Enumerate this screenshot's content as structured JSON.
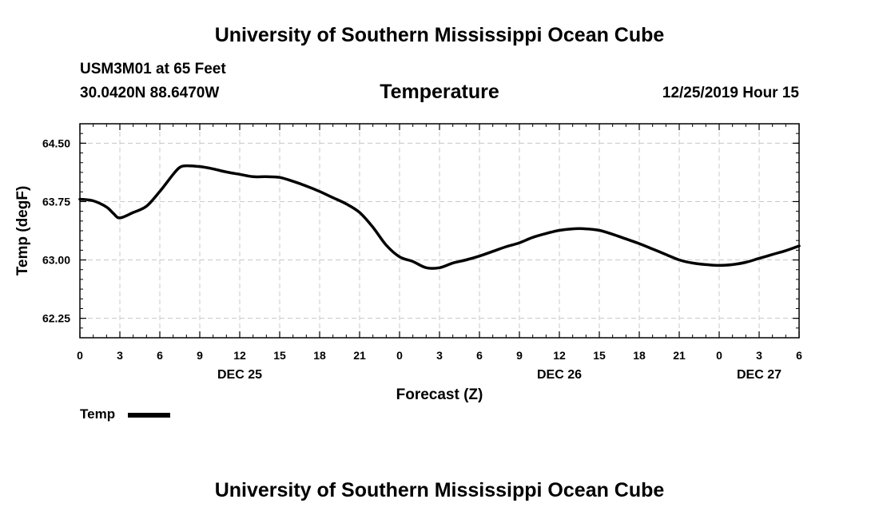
{
  "header": {
    "title": "University of Southern Mississippi Ocean Cube",
    "station": "USM3M01 at 65 Feet",
    "coords": "30.0420N 88.6470W",
    "variable": "Temperature",
    "timestamp": "12/25/2019 Hour 15"
  },
  "footer": {
    "title": "University of Southern Mississippi Ocean Cube"
  },
  "legend": {
    "label": "Temp",
    "color": "#000000"
  },
  "chart_data": {
    "type": "line",
    "title": "Temperature",
    "xlabel": "Forecast (Z)",
    "ylabel": "Temp (degF)",
    "xlim": [
      0,
      54
    ],
    "ylim": [
      62.0,
      64.75
    ],
    "grid": true,
    "x_ticks": [
      {
        "x": 0,
        "label": "0"
      },
      {
        "x": 3,
        "label": "3"
      },
      {
        "x": 6,
        "label": "6"
      },
      {
        "x": 9,
        "label": "9"
      },
      {
        "x": 12,
        "label": "12"
      },
      {
        "x": 15,
        "label": "15"
      },
      {
        "x": 18,
        "label": "18"
      },
      {
        "x": 21,
        "label": "21"
      },
      {
        "x": 24,
        "label": "0"
      },
      {
        "x": 27,
        "label": "3"
      },
      {
        "x": 30,
        "label": "6"
      },
      {
        "x": 33,
        "label": "9"
      },
      {
        "x": 36,
        "label": "12"
      },
      {
        "x": 39,
        "label": "15"
      },
      {
        "x": 42,
        "label": "18"
      },
      {
        "x": 45,
        "label": "21"
      },
      {
        "x": 48,
        "label": "0"
      },
      {
        "x": 51,
        "label": "3"
      },
      {
        "x": 54,
        "label": "6"
      }
    ],
    "date_labels": [
      {
        "x": 12,
        "label": "DEC 25"
      },
      {
        "x": 36,
        "label": "DEC 26"
      },
      {
        "x": 51,
        "label": "DEC 27"
      }
    ],
    "y_ticks": [
      62.25,
      63.0,
      63.75,
      64.5
    ],
    "y_tick_labels": [
      "62.25",
      "63.00",
      "63.75",
      "64.50"
    ],
    "series": [
      {
        "name": "Temp",
        "x": [
          0,
          1,
          2,
          2.5,
          3,
          4,
          5,
          6,
          7,
          7.5,
          8,
          9,
          10,
          11,
          12,
          13,
          14,
          15,
          16,
          17,
          18,
          19,
          20,
          21,
          22,
          23,
          24,
          25,
          26,
          27,
          28,
          29,
          30,
          31,
          32,
          33,
          34,
          35,
          36,
          37,
          38,
          39,
          40,
          41,
          42,
          43,
          44,
          45,
          46,
          47,
          48,
          49,
          50,
          51,
          52,
          53,
          54
        ],
        "values": [
          63.78,
          63.76,
          63.68,
          63.6,
          63.54,
          63.61,
          63.69,
          63.88,
          64.1,
          64.19,
          64.21,
          64.2,
          64.17,
          64.13,
          64.1,
          64.07,
          64.07,
          64.06,
          64.01,
          63.95,
          63.88,
          63.8,
          63.72,
          63.61,
          63.42,
          63.19,
          63.04,
          62.98,
          62.9,
          62.9,
          62.96,
          63.0,
          63.05,
          63.11,
          63.17,
          63.22,
          63.29,
          63.34,
          63.38,
          63.4,
          63.4,
          63.38,
          63.33,
          63.27,
          63.21,
          63.14,
          63.07,
          63.0,
          62.96,
          62.94,
          62.93,
          62.94,
          62.97,
          63.02,
          63.07,
          63.12,
          63.18
        ]
      }
    ]
  }
}
